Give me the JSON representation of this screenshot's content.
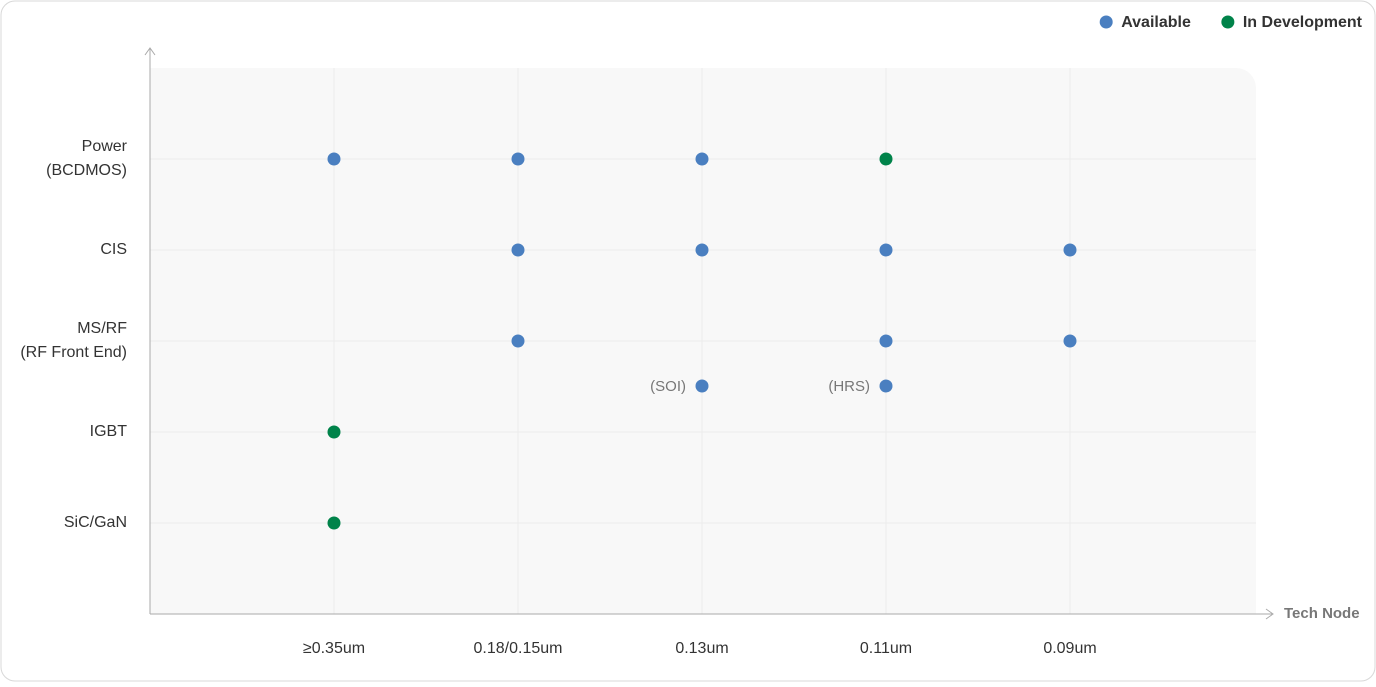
{
  "chart_data": {
    "type": "dot-matrix",
    "x_label": "Tech Node",
    "categories": [
      "≥0.35um",
      "0.18/0.15um",
      "0.13um",
      "0.11um",
      "0.09um"
    ],
    "series": [
      {
        "name": "Available",
        "color": "#4a7fc0"
      },
      {
        "name": "In Development",
        "color": "#00834a"
      }
    ],
    "rows": [
      {
        "label": [
          "Power",
          "(BCDMOS)"
        ],
        "cells": [
          "Available",
          "Available",
          "Available",
          "In Development",
          null
        ]
      },
      {
        "label": [
          "CIS"
        ],
        "cells": [
          null,
          "Available",
          "Available",
          "Available",
          "Available"
        ]
      },
      {
        "label": [
          "MS/RF",
          "(RF Front End)"
        ],
        "cells": [
          null,
          "Available",
          null,
          "Available",
          "Available"
        ],
        "sub_cells": [
          null,
          null,
          "Available",
          "Available",
          null
        ],
        "sub_notes": [
          null,
          null,
          "(SOI)",
          "(HRS)",
          null
        ]
      },
      {
        "label": [
          "IGBT"
        ],
        "cells": [
          "In Development",
          null,
          null,
          null,
          null
        ]
      },
      {
        "label": [
          "SiC/GaN"
        ],
        "cells": [
          "In Development",
          null,
          null,
          null,
          null
        ]
      }
    ],
    "grid": true,
    "legend": "top-right"
  }
}
